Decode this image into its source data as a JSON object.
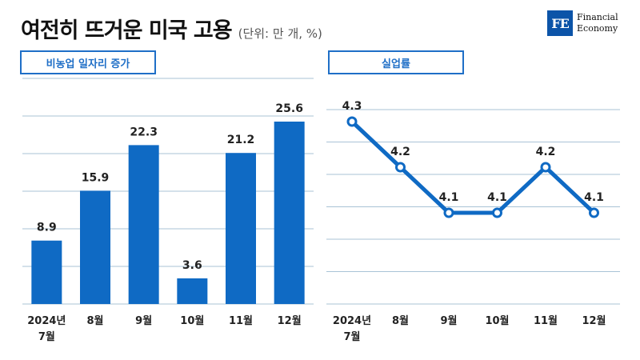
{
  "title": "여전히 뜨거운 미국 고용",
  "unit_note": "(단위: 만 개, %)",
  "logo": {
    "mark": "FE",
    "line1": "Financial",
    "line2": "Economy"
  },
  "colors": {
    "accent": "#1f6fc7",
    "bar": "#0f6ac4",
    "grid": "#a9c3d6"
  },
  "chart_data": [
    {
      "type": "bar",
      "title": "비농업 일자리 증가",
      "categories": [
        "2024년 7월",
        "8월",
        "9월",
        "10월",
        "11월",
        "12월"
      ],
      "tick_lines": [
        [
          "2024년",
          "7월"
        ],
        [
          "8월"
        ],
        [
          "9월"
        ],
        [
          "10월"
        ],
        [
          "11월"
        ],
        [
          "12월"
        ]
      ],
      "values": [
        8.9,
        15.9,
        22.3,
        3.6,
        21.2,
        25.6
      ],
      "value_labels": [
        "8.9",
        "15.9",
        "22.3",
        "3.6",
        "21.2",
        "25.6"
      ],
      "ylim": [
        0,
        32
      ],
      "grid": true
    },
    {
      "type": "line",
      "title": "실업률",
      "categories": [
        "2024년 7월",
        "8월",
        "9월",
        "10월",
        "11월",
        "12월"
      ],
      "tick_lines": [
        [
          "2024년",
          "7월"
        ],
        [
          "8월"
        ],
        [
          "9월"
        ],
        [
          "10월"
        ],
        [
          "11월"
        ],
        [
          "12월"
        ]
      ],
      "values": [
        4.3,
        4.2,
        4.1,
        4.1,
        4.2,
        4.1
      ],
      "value_labels": [
        "4.3",
        "4.2",
        "4.1",
        "4.1",
        "4.2",
        "4.1"
      ],
      "ylim": [
        3.9,
        4.4
      ],
      "grid": true
    }
  ]
}
